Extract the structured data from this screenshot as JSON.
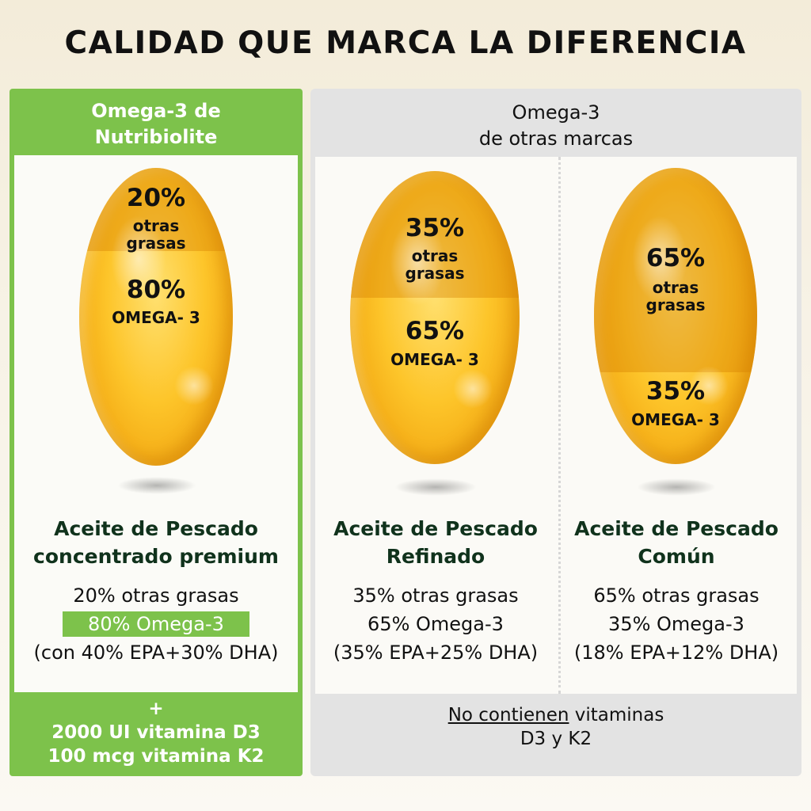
{
  "title": "CALIDAD QUE MARCA LA DIFERENCIA",
  "left": {
    "header": [
      "Omega-3 de",
      "Nutribiolite"
    ],
    "capsule": {
      "top_pct": "20%",
      "top_label": [
        "otras",
        "grasas"
      ],
      "bottom_pct": "80%",
      "bottom_label": "OMEGA- 3"
    },
    "product": [
      "Aceite de Pescado",
      "concentrado premium"
    ],
    "line1": "20% otras grasas",
    "line2": "80% Omega-3",
    "line3": "(con 40% EPA+30% DHA)",
    "footer": [
      "+",
      "2000 UI vitamina D3",
      "100 mcg vitamina K2"
    ]
  },
  "right": {
    "header": [
      "Omega-3",
      "de otras marcas"
    ],
    "col1": {
      "capsule": {
        "top_pct": "35%",
        "top_label": [
          "otras",
          "grasas"
        ],
        "bottom_pct": "65%",
        "bottom_label": "OMEGA- 3"
      },
      "product": [
        "Aceite de Pescado",
        "Refinado"
      ],
      "line1": "35% otras grasas",
      "line2": "65% Omega-3",
      "line3": "(35% EPA+25% DHA)"
    },
    "col2": {
      "capsule": {
        "top_pct": "65%",
        "top_label": [
          "otras",
          "grasas"
        ],
        "bottom_pct": "35%",
        "bottom_label": "OMEGA- 3"
      },
      "product": [
        "Aceite de Pescado",
        "Común"
      ],
      "line1": "65% otras grasas",
      "line2": "35% Omega-3",
      "line3": "(18% EPA+12% DHA)"
    },
    "footer_underlined": "No contienen",
    "footer_rest": " vitaminas",
    "footer_line2": "D3 y K2"
  }
}
